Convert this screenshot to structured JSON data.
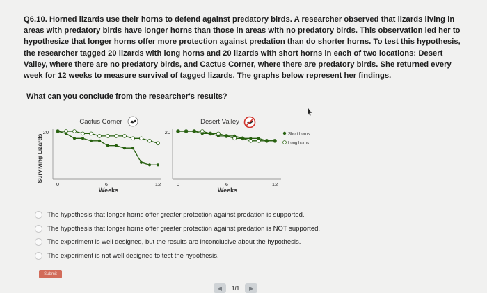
{
  "question": {
    "lines": [
      "Q6.10. Horned lizards use their horns to defend against predatory birds. A researcher observed that lizards living in",
      "areas with predatory birds have longer horns than those in areas with no predatory birds. This observation led her to",
      "hypothesize that longer horns offer more protection against predation than do shorter horns. To test this hypothesis,",
      "the researcher tagged 20 lizards with long horns and 20 lizards with short horns in each of two locations: Desert",
      "Valley, where there are no predatory birds, and Cactus Corner, where there are predatory birds. She returned every",
      "week for 12 weeks to measure survival of tagged lizards. The graphs below represent her findings."
    ],
    "prompt": "What can you conclude from the researcher's results?"
  },
  "chart_data": [
    {
      "type": "line",
      "title": "Cactus Corner",
      "title_icon": "bird-icon",
      "xlabel": "Weeks",
      "ylabel": "Surviving Lizards",
      "xlim": [
        0,
        12
      ],
      "ylim": [
        0,
        20
      ],
      "xticks": [
        0,
        6,
        12
      ],
      "yticks": [
        20
      ],
      "x": [
        0,
        1,
        2,
        3,
        4,
        5,
        6,
        7,
        8,
        9,
        10,
        11,
        12
      ],
      "series": [
        {
          "name": "Short horns",
          "marker": "filled",
          "values": [
            20,
            19,
            17,
            17,
            16,
            16,
            14,
            14,
            13,
            13,
            7,
            6,
            6
          ]
        },
        {
          "name": "Long horns",
          "marker": "open",
          "values": [
            20,
            20,
            20,
            19,
            19,
            18,
            18,
            18,
            18,
            17,
            17,
            16,
            15
          ]
        }
      ]
    },
    {
      "type": "line",
      "title": "Desert Valley",
      "title_icon": "no-bird-icon",
      "xlabel": "Weeks",
      "ylabel": "",
      "xlim": [
        0,
        12
      ],
      "ylim": [
        0,
        20
      ],
      "xticks": [
        0,
        6,
        12
      ],
      "yticks": [
        20
      ],
      "x": [
        0,
        1,
        2,
        3,
        4,
        5,
        6,
        7,
        8,
        9,
        10,
        11,
        12
      ],
      "series": [
        {
          "name": "Short horns",
          "marker": "filled",
          "values": [
            20,
            20,
            20,
            19,
            19,
            18,
            18,
            18,
            17,
            17,
            17,
            16,
            16
          ]
        },
        {
          "name": "Long horns",
          "marker": "open",
          "values": [
            20,
            20,
            20,
            20,
            19,
            19,
            18,
            17,
            17,
            16,
            16,
            16,
            16
          ]
        }
      ]
    }
  ],
  "legend": {
    "position": "right",
    "items": [
      {
        "label": "Short horns",
        "marker": "filled"
      },
      {
        "label": "Long horns",
        "marker": "open"
      }
    ]
  },
  "options": [
    "The hypothesis that longer horns offer greater protection against predation is supported.",
    "The hypothesis that longer horns offer greater protection against predation is NOT supported.",
    "The experiment is well designed, but the results are inconclusive about the hypothesis.",
    "The experiment is not well designed to test the hypothesis."
  ],
  "submit_label": "Submit",
  "pager": {
    "text": "1/1",
    "prev_icon": "chevron-left-icon",
    "next_icon": "chevron-right-icon"
  },
  "colors": {
    "line": "#27600f",
    "axis": "#9a9a9a",
    "no_symbol": "#d0342c",
    "submit": "#d26c5a"
  }
}
